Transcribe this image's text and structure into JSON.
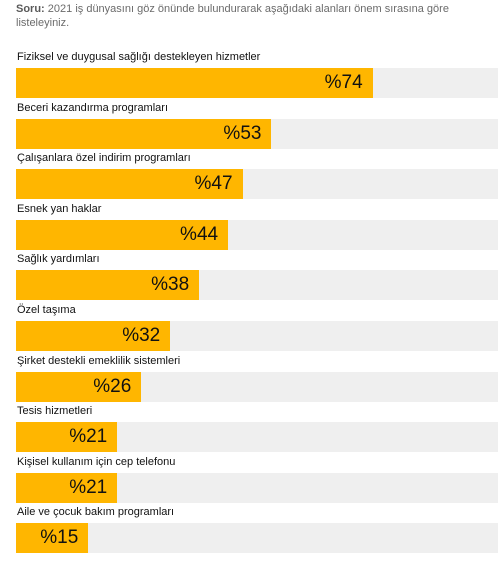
{
  "question": {
    "label": "Soru:",
    "text": "2021 iş dünyasını göz önünde bulundurarak aşağıdaki alanları önem sırasına göre listeleyiniz."
  },
  "colors": {
    "bar": "#ffb600",
    "track": "#efefef",
    "text": "#111111"
  },
  "chart_data": {
    "type": "bar",
    "orientation": "horizontal",
    "title": "",
    "xlabel": "",
    "ylabel": "",
    "xlim": [
      0,
      100
    ],
    "value_prefix": "%",
    "categories": [
      "Fiziksel ve duygusal sağlığı destekleyen hizmetler",
      "Beceri kazandırma programları",
      "Çalışanlara özel indirim programları",
      "Esnek yan haklar",
      "Sağlık yardımları",
      "Özel taşıma",
      "Şirket destekli emeklilik sistemleri",
      "Tesis hizmetleri",
      "Kişisel kullanım için cep telefonu",
      "Aile ve çocuk bakım programları"
    ],
    "values": [
      74,
      53,
      47,
      44,
      38,
      32,
      26,
      21,
      21,
      15
    ],
    "value_labels": [
      "%74",
      "%53",
      "%47",
      "%44",
      "%38",
      "%32",
      "%26",
      "%21",
      "%21",
      "%15"
    ]
  }
}
